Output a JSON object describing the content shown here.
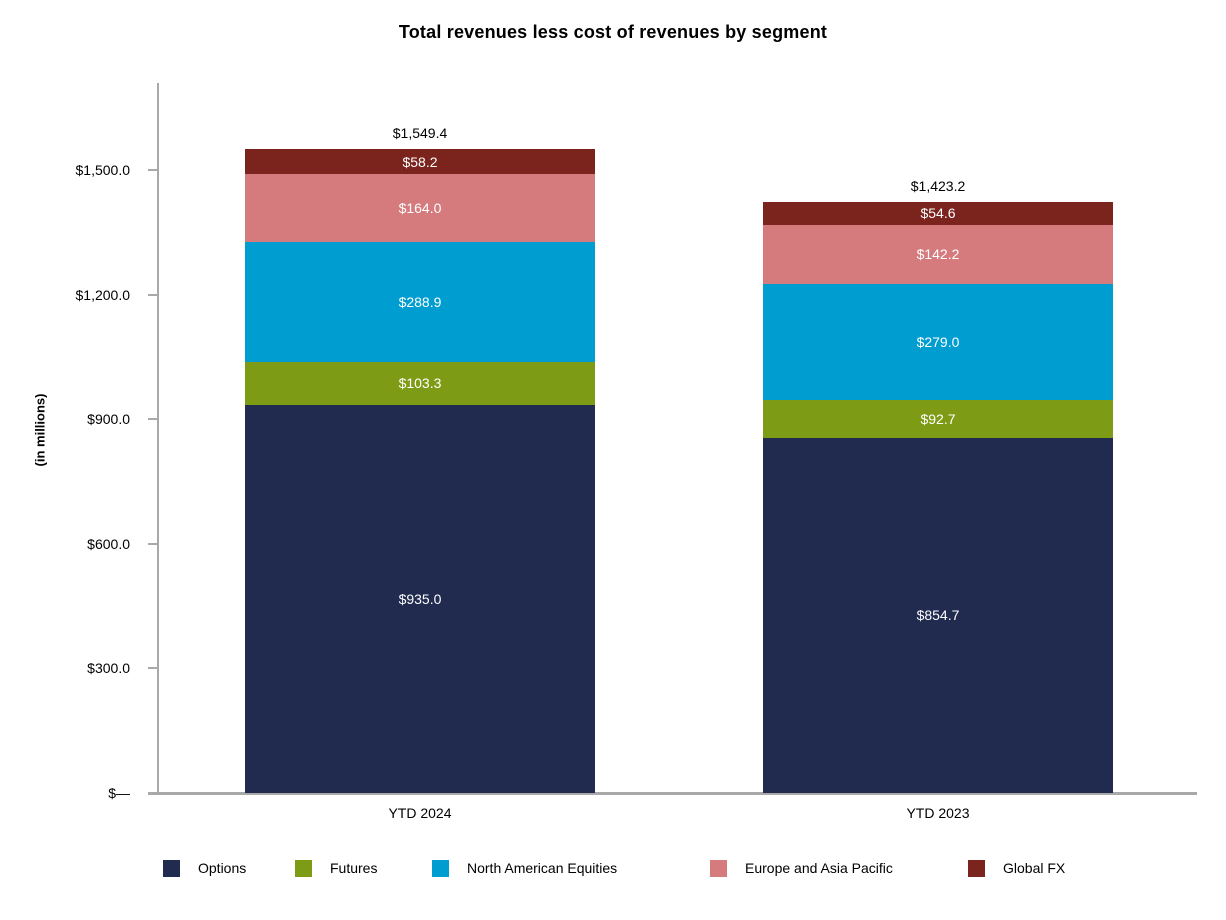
{
  "chart_data": {
    "type": "bar",
    "stacked": true,
    "title": "Total revenues less cost of revenues by segment",
    "ylabel": "(in millions)",
    "categories": [
      "YTD 2024",
      "YTD 2023"
    ],
    "series": [
      {
        "name": "Options",
        "color": "#212B50",
        "values": [
          935.0,
          854.7
        ],
        "labels": [
          "$935.0",
          "$854.7"
        ]
      },
      {
        "name": "Futures",
        "color": "#7E9B15",
        "values": [
          103.3,
          92.7
        ],
        "labels": [
          "$103.3",
          "$92.7"
        ]
      },
      {
        "name": "North American Equities",
        "color": "#009DD1",
        "values": [
          288.9,
          279.0
        ],
        "labels": [
          "$288.9",
          "$279.0"
        ]
      },
      {
        "name": "Europe and Asia Pacific",
        "color": "#D57B7E",
        "values": [
          164.0,
          142.2
        ],
        "labels": [
          "$164.0",
          "$142.2"
        ]
      },
      {
        "name": "Global FX",
        "color": "#7A241D",
        "values": [
          58.2,
          54.6
        ],
        "labels": [
          "$58.2",
          "$54.6"
        ]
      }
    ],
    "totals": [
      "$1,549.4",
      "$1,423.2"
    ],
    "yticks": [
      {
        "value": 0,
        "label": "$—"
      },
      {
        "value": 300,
        "label": "$300.0"
      },
      {
        "value": 600,
        "label": "$600.0"
      },
      {
        "value": 900,
        "label": "$900.0"
      },
      {
        "value": 1200,
        "label": "$1,200.0"
      },
      {
        "value": 1500,
        "label": "$1,500.0"
      }
    ],
    "ylim": [
      0,
      1710
    ],
    "grid": false,
    "legend_position": "bottom",
    "axis_color": "#A9A9A9"
  }
}
